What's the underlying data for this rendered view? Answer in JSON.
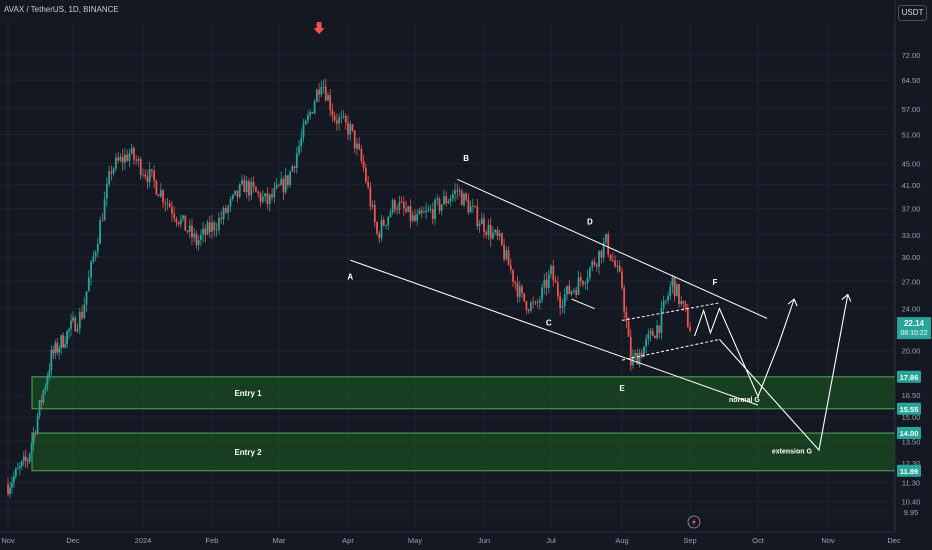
{
  "header": {
    "title": "AVAX / TetherUS, 1D, BINANCE",
    "currency_button": "USDT"
  },
  "colors": {
    "background": "#141823",
    "up": "#26a69a",
    "down": "#ef5350",
    "zone": "#1b5e20",
    "zone_border": "#4caf50",
    "price_label": "#26a69a",
    "annotation": "#ffffff"
  },
  "chart_data": {
    "type": "candlestick",
    "symbol": "AVAX / TetherUS",
    "timeframe": "1D",
    "exchange": "BINANCE",
    "y_scale": "log",
    "ylim": [
      9.2,
      83
    ],
    "y_ticks": [
      "9.95",
      "10.40",
      "11.30",
      "12.30",
      "13.50",
      "15.00",
      "16.50",
      "20.00",
      "24.00",
      "27.00",
      "30.00",
      "33.00",
      "37.00",
      "41.00",
      "45.00",
      "51.00",
      "57.00",
      "64.50",
      "72.00"
    ],
    "x_ticks": [
      "Nov",
      "Dec",
      "2024",
      "Feb",
      "Mar",
      "Apr",
      "May",
      "Jun",
      "Jul",
      "Aug",
      "Sep",
      "Oct",
      "Nov",
      "Dec"
    ],
    "x_dates": [
      "2023-10-29",
      "2023-12-01",
      "2024-01-01",
      "2024-02-01",
      "2024-03-01",
      "2024-04-01",
      "2024-05-01",
      "2024-06-01",
      "2024-07-01",
      "2024-08-01",
      "2024-09-01",
      "2024-10-01",
      "2024-11-01",
      "2024-12-01"
    ],
    "path_dates": [
      "2023-10-29",
      "2023-11-08",
      "2023-11-20",
      "2023-12-05",
      "2023-12-18",
      "2023-12-26",
      "2024-01-05",
      "2024-01-18",
      "2024-01-25",
      "2024-02-05",
      "2024-02-15",
      "2024-02-25",
      "2024-03-05",
      "2024-03-15",
      "2024-03-20",
      "2024-03-26",
      "2024-04-02",
      "2024-04-08",
      "2024-04-14",
      "2024-04-22",
      "2024-05-01",
      "2024-05-10",
      "2024-05-20",
      "2024-05-28",
      "2024-06-08",
      "2024-06-18",
      "2024-06-24",
      "2024-07-01",
      "2024-07-05",
      "2024-07-12",
      "2024-07-18",
      "2024-07-25",
      "2024-08-01",
      "2024-08-05",
      "2024-08-10",
      "2024-08-18",
      "2024-08-24",
      "2024-09-01"
    ],
    "path_values": [
      11.2,
      12.5,
      19.5,
      23.5,
      44.0,
      47.0,
      42.0,
      35.0,
      32.0,
      35.5,
      41.0,
      38.0,
      42.0,
      56.0,
      65.0,
      55.0,
      52.0,
      44.0,
      33.0,
      38.0,
      35.0,
      37.0,
      40.0,
      36.0,
      32.0,
      25.0,
      24.0,
      28.0,
      25.0,
      26.5,
      28.5,
      32.0,
      26.5,
      19.0,
      20.0,
      22.5,
      27.0,
      22.14
    ],
    "last_price": "22.14",
    "countdown": "08:10:22",
    "zones": [
      {
        "name": "Entry 1",
        "top": 17.86,
        "bottom": 15.55,
        "top_label": "17.86",
        "bottom_label": "15.55"
      },
      {
        "name": "Entry 2",
        "top": 14.0,
        "bottom": 11.89,
        "top_label": "14.00",
        "bottom_label": "11.89"
      }
    ],
    "wave_labels": [
      "A",
      "B",
      "C",
      "D",
      "E",
      "F"
    ],
    "targets": [
      "normal G",
      "extension G"
    ],
    "signal_icon": "down-arrow-icon"
  }
}
